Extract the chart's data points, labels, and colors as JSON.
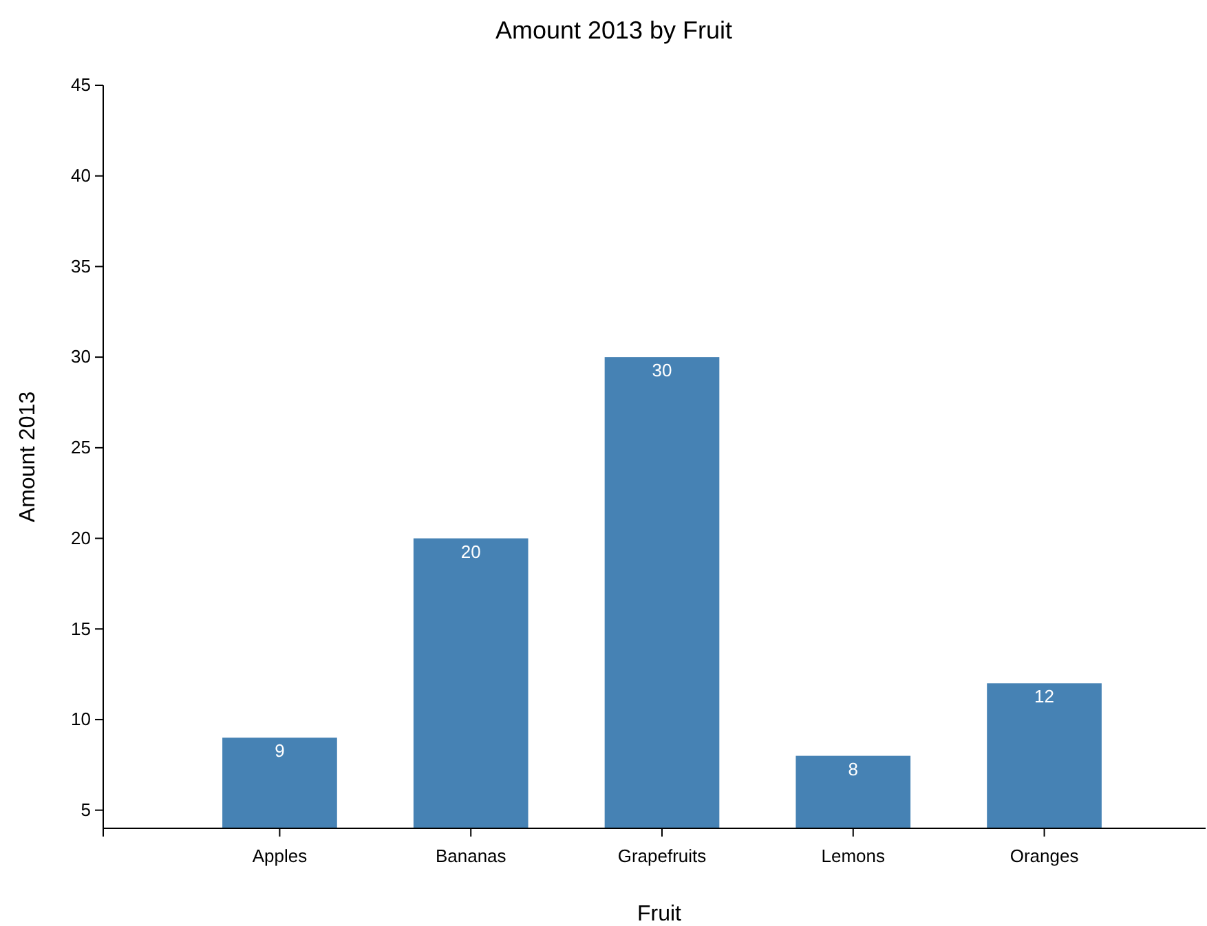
{
  "chart_data": {
    "type": "bar",
    "title": "Amount 2013 by Fruit",
    "xlabel": "Fruit",
    "ylabel": "Amount 2013",
    "categories": [
      "Apples",
      "Bananas",
      "Grapefruits",
      "Lemons",
      "Oranges"
    ],
    "values": [
      9,
      20,
      30,
      8,
      12
    ],
    "color": "#4682b4",
    "ylim": [
      4,
      45
    ],
    "yticks": [
      5,
      10,
      15,
      20,
      25,
      30,
      35,
      40,
      45
    ],
    "data_labels": true,
    "grid": false,
    "legend": false
  }
}
